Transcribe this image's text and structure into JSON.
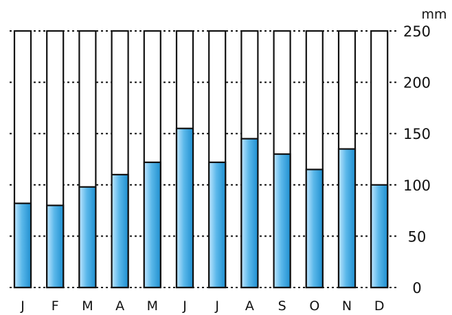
{
  "chart_data": {
    "type": "bar",
    "title": "",
    "xlabel": "",
    "ylabel": "mm",
    "unit": "mm",
    "categories": [
      "J",
      "F",
      "M",
      "A",
      "M",
      "J",
      "J",
      "A",
      "S",
      "O",
      "N",
      "D"
    ],
    "values": [
      82,
      80,
      98,
      110,
      122,
      155,
      122,
      145,
      130,
      115,
      135,
      100
    ],
    "ylim": [
      0,
      250
    ],
    "yticks": [
      "0",
      "50",
      "100",
      "150",
      "200",
      "250"
    ],
    "grid": true,
    "grid_style": "dotted",
    "y_axis_side": "right",
    "colors": {
      "fill_top": "#bfe6ff",
      "fill_mid": "#5bb8ea",
      "fill_bottom": "#1f8fd0",
      "outline": "#111111",
      "grid": "#111111"
    }
  }
}
